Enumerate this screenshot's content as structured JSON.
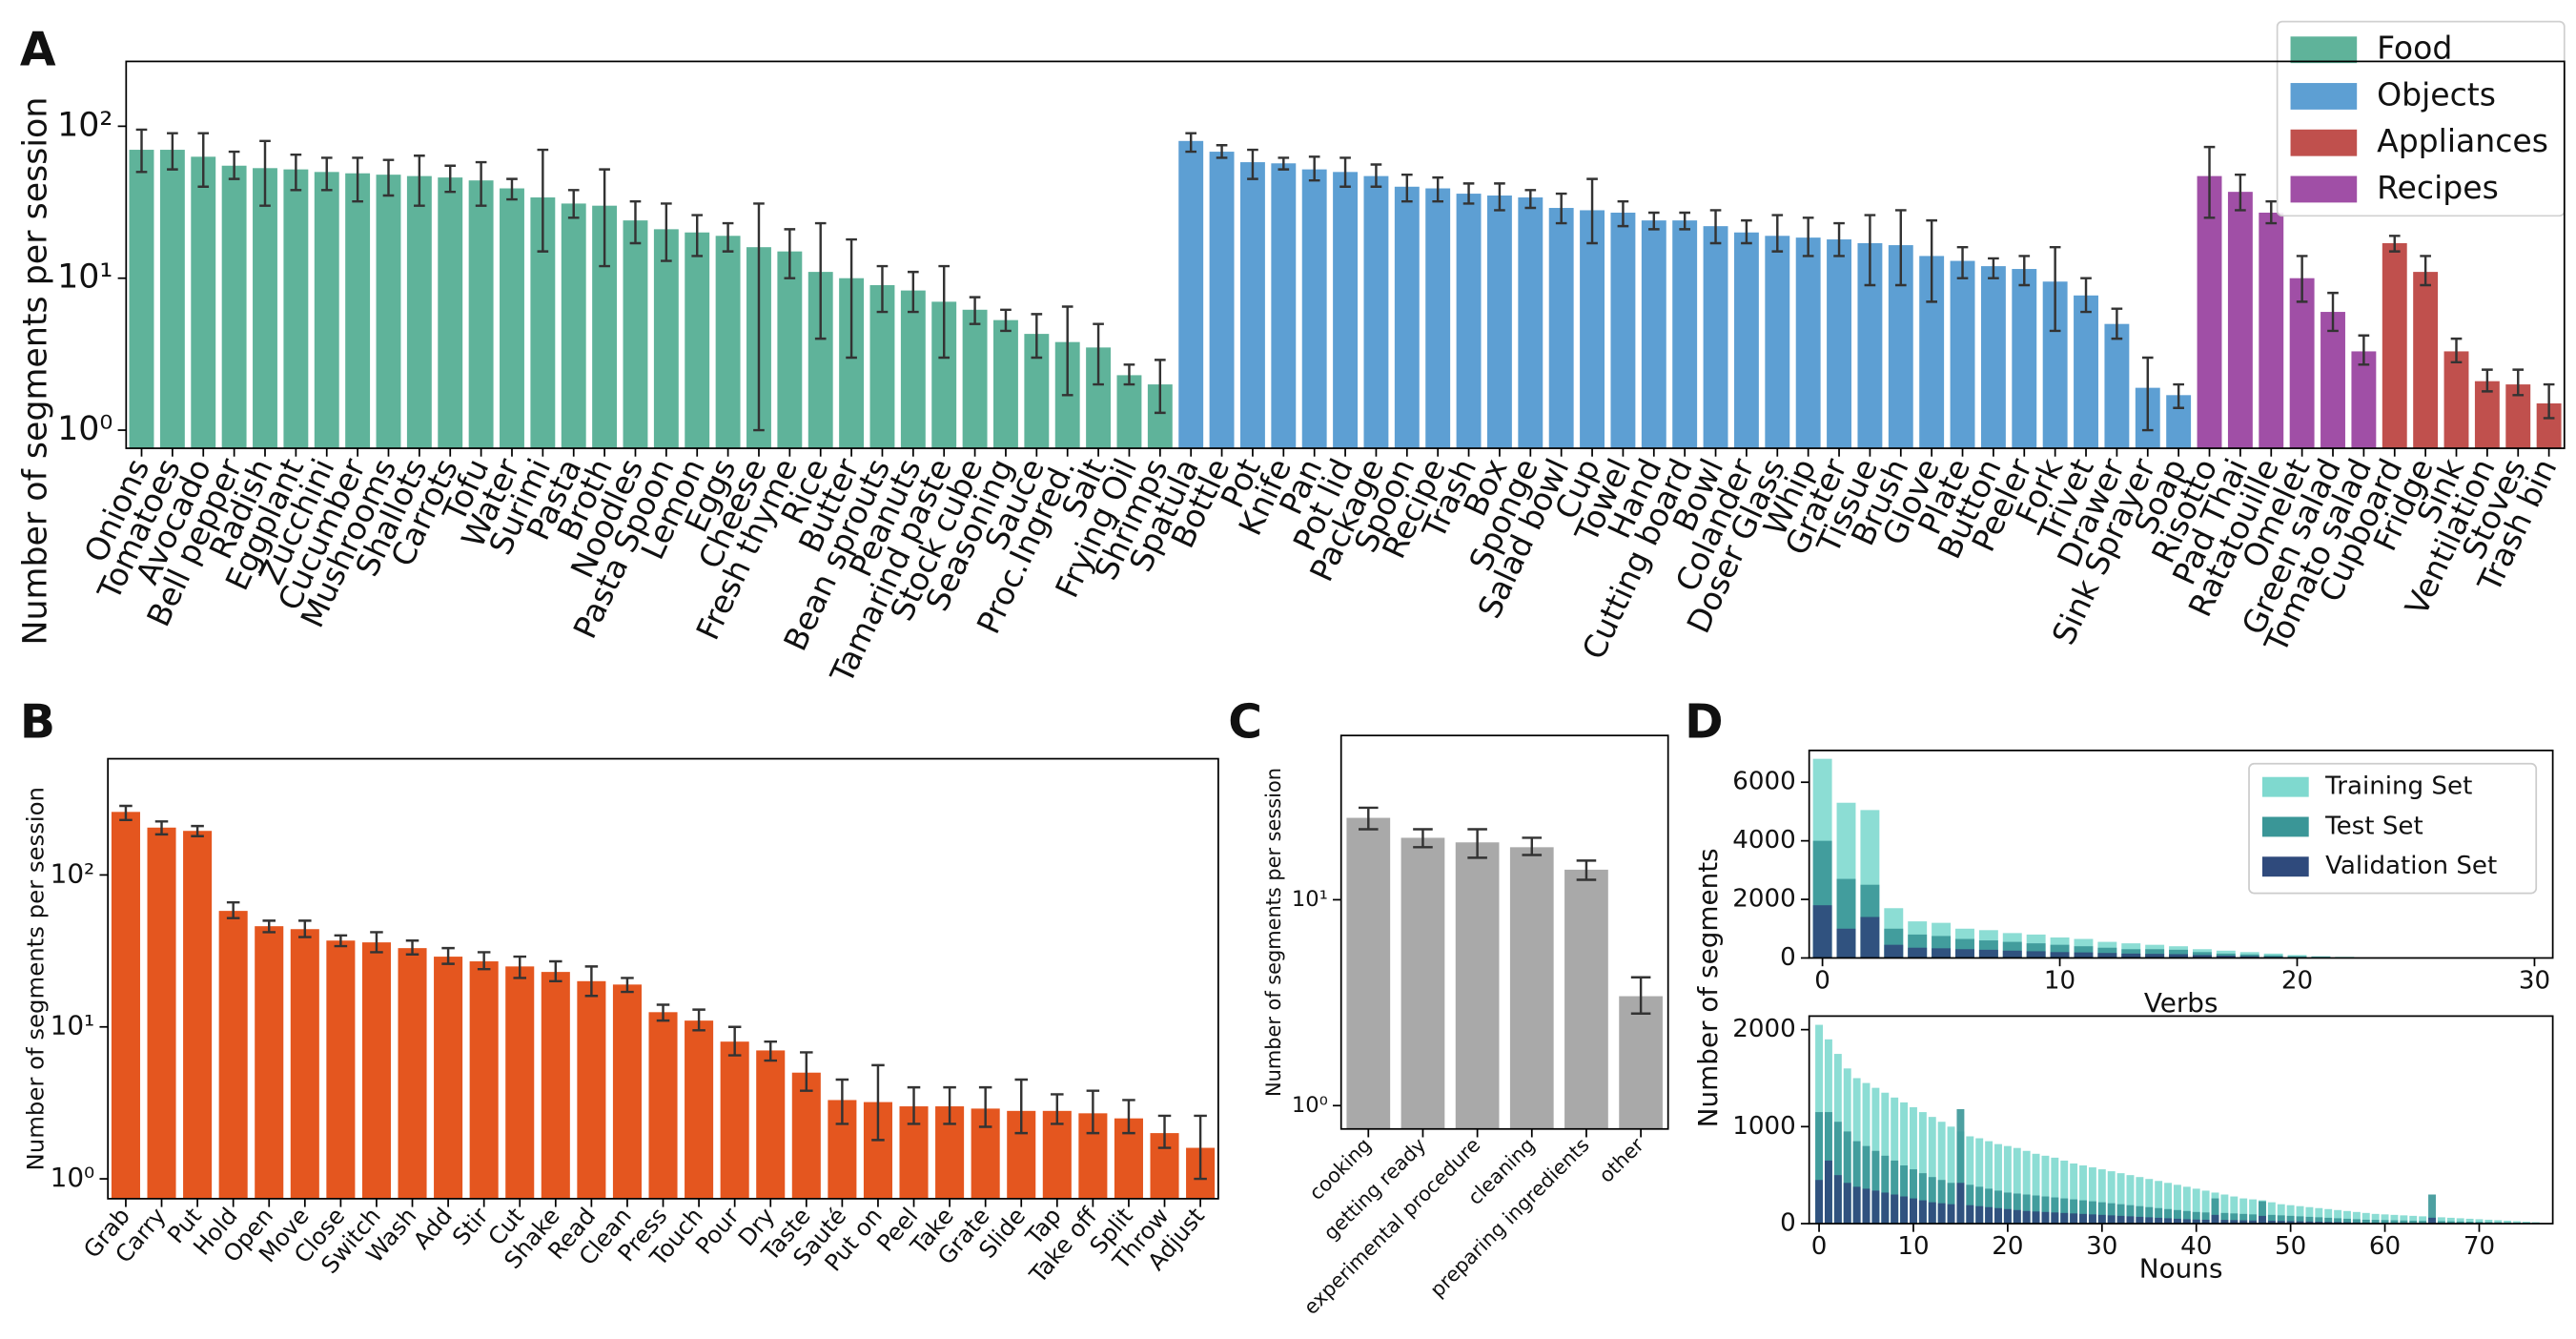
{
  "chart_data": [
    {
      "type": "bar",
      "panel": "A",
      "ylabel": "Number of segments per session",
      "yscale": "log",
      "ylim": [
        0.76,
        267
      ],
      "yticks": [
        {
          "value": 1,
          "label": "10⁰"
        },
        {
          "value": 10,
          "label": "10¹"
        },
        {
          "value": 100,
          "label": "10²"
        }
      ],
      "legend": "upper right",
      "series": [
        {
          "name": "Food",
          "color": "#5fb39a"
        },
        {
          "name": "Objects",
          "color": "#5d9fd3"
        },
        {
          "name": "Appliances",
          "color": "#c0504d"
        },
        {
          "name": "Recipes",
          "color": "#a04fa6"
        }
      ],
      "categories": [
        "Onions",
        "Tomatoes",
        "Avocado",
        "Bell pepper",
        "Radish",
        "Eggplant",
        "Zucchini",
        "Cucumber",
        "Mushrooms",
        "Shallots",
        "Carrots",
        "Tofu",
        "Water",
        "Surimi",
        "Pasta",
        "Broth",
        "Noodles",
        "Pasta Spoon",
        "Lemon",
        "Eggs",
        "Cheese",
        "Fresh thyme",
        "Rice",
        "Butter",
        "Bean sprouts",
        "Peanuts",
        "Tamarind paste",
        "Stock cube",
        "Seasoning",
        "Sauce",
        "Proc.Ingred.",
        "Salt",
        "Frying Oil",
        "Shrimps",
        "Spatula",
        "Bottle",
        "Pot",
        "Knife",
        "Pan",
        "Pot lid",
        "Package",
        "Spoon",
        "Recipe",
        "Trash",
        "Box",
        "Sponge",
        "Salad bowl",
        "Cup",
        "Towel",
        "Hand",
        "Cutting board",
        "Bowl",
        "Colander",
        "Doser Glass",
        "Whip",
        "Grater",
        "Tissue",
        "Brush",
        "Glove",
        "Plate",
        "Button",
        "Peeler",
        "Fork",
        "Trivet",
        "Drawer",
        "Sink Sprayer",
        "Soap",
        "Risotto",
        "Pad Thai",
        "Ratatouille",
        "Omelet",
        "Green salad",
        "Tomato salad",
        "Cupboard",
        "Fridge",
        "Sink",
        "Ventilation",
        "Stoves",
        "Trash bin"
      ],
      "groups": [
        "Food",
        "Food",
        "Food",
        "Food",
        "Food",
        "Food",
        "Food",
        "Food",
        "Food",
        "Food",
        "Food",
        "Food",
        "Food",
        "Food",
        "Food",
        "Food",
        "Food",
        "Food",
        "Food",
        "Food",
        "Food",
        "Food",
        "Food",
        "Food",
        "Food",
        "Food",
        "Food",
        "Food",
        "Food",
        "Food",
        "Food",
        "Food",
        "Food",
        "Food",
        "Objects",
        "Objects",
        "Objects",
        "Objects",
        "Objects",
        "Objects",
        "Objects",
        "Objects",
        "Objects",
        "Objects",
        "Objects",
        "Objects",
        "Objects",
        "Objects",
        "Objects",
        "Objects",
        "Objects",
        "Objects",
        "Objects",
        "Objects",
        "Objects",
        "Objects",
        "Objects",
        "Objects",
        "Objects",
        "Objects",
        "Objects",
        "Objects",
        "Objects",
        "Objects",
        "Objects",
        "Objects",
        "Objects",
        "Recipes",
        "Recipes",
        "Recipes",
        "Recipes",
        "Recipes",
        "Recipes",
        "Appliances",
        "Appliances",
        "Appliances",
        "Appliances",
        "Appliances",
        "Appliances"
      ],
      "values": [
        70,
        70,
        63,
        55,
        53,
        52,
        50,
        49,
        48,
        47,
        46,
        44,
        39,
        34,
        31,
        30,
        24,
        21,
        20,
        19,
        16,
        15,
        11,
        10,
        9,
        8.3,
        7,
        6.2,
        5.3,
        4.3,
        3.8,
        3.5,
        2.3,
        2.0,
        80,
        68,
        58,
        57,
        52,
        50,
        47,
        40,
        39,
        36,
        35,
        34,
        29,
        28,
        27,
        24,
        24,
        22,
        20,
        19,
        18.5,
        18,
        17,
        16.5,
        14,
        13,
        12,
        11.5,
        9.5,
        7.7,
        5,
        1.9,
        1.7,
        47,
        37,
        27,
        10,
        6,
        3.3,
        17,
        11,
        3.3,
        2.1,
        2.0,
        1.5
      ],
      "err_low": [
        50,
        52,
        40,
        45,
        30,
        38,
        38,
        32,
        35,
        30,
        37,
        30,
        33,
        15,
        25,
        12,
        17,
        13,
        14,
        15,
        1,
        10,
        4,
        3,
        6,
        6,
        3,
        5,
        4.5,
        3,
        1.7,
        2,
        2,
        1.3,
        68,
        62,
        45,
        52,
        44,
        40,
        40,
        32,
        32,
        31,
        28,
        29,
        23,
        17,
        22,
        21,
        21,
        17,
        17,
        15,
        14,
        14,
        9,
        9,
        7,
        10,
        10,
        9,
        4.5,
        6,
        4,
        1,
        1.4,
        25,
        28,
        23,
        7,
        4.5,
        2.7,
        15,
        9,
        2.8,
        1.8,
        1.7,
        1.2
      ],
      "err_high": [
        95,
        90,
        90,
        68,
        80,
        65,
        62,
        62,
        60,
        64,
        55,
        58,
        45,
        70,
        38,
        52,
        32,
        31,
        26,
        23,
        31,
        21,
        23,
        18,
        12,
        11,
        12,
        7.5,
        6.2,
        5.8,
        6.5,
        5,
        2.7,
        2.9,
        90,
        75,
        70,
        62,
        63,
        62,
        56,
        48,
        46,
        42,
        42,
        38,
        36,
        45,
        32,
        27,
        27,
        28,
        24,
        26,
        25,
        23,
        26,
        28,
        24,
        16,
        13.5,
        14,
        16,
        10,
        6.3,
        3,
        2,
        73,
        48,
        32,
        14,
        8,
        4.2,
        19,
        14,
        4,
        2.5,
        2.5,
        2
      ]
    },
    {
      "type": "bar",
      "panel": "B",
      "ylabel": "Number of segments per session",
      "yscale": "log",
      "color": "#e4561f",
      "ylim": [
        0.74,
        582
      ],
      "yticks": [
        {
          "value": 1,
          "label": "10⁰"
        },
        {
          "value": 10,
          "label": "10¹"
        },
        {
          "value": 100,
          "label": "10²"
        }
      ],
      "categories": [
        "Grab",
        "Carry",
        "Put",
        "Hold",
        "Open",
        "Move",
        "Close",
        "Switch",
        "Wash",
        "Add",
        "Stir",
        "Cut",
        "Shake",
        "Read",
        "Clean",
        "Press",
        "Touch",
        "Pour",
        "Dry",
        "Taste",
        "Sauté",
        "Put on",
        "Peel",
        "Take",
        "Grate",
        "Slide",
        "Tap",
        "Take off",
        "Split",
        "Throw",
        "Adjust"
      ],
      "values": [
        260,
        205,
        195,
        58,
        46,
        44,
        37,
        36,
        33,
        29,
        27,
        25,
        23,
        20,
        19,
        12.5,
        11,
        8,
        7,
        5,
        3.3,
        3.2,
        3.0,
        3.0,
        2.9,
        2.8,
        2.8,
        2.7,
        2.5,
        2.0,
        1.6
      ],
      "err_low": [
        230,
        185,
        180,
        52,
        42,
        39,
        34,
        31,
        30,
        26,
        24,
        21,
        20,
        16,
        17,
        11,
        9.5,
        6.5,
        6,
        3.8,
        2.3,
        1.8,
        2.3,
        2.3,
        2.2,
        2,
        2.3,
        2,
        2,
        1.6,
        1
      ],
      "err_high": [
        285,
        225,
        210,
        66,
        50,
        50,
        40,
        42,
        37,
        33,
        31,
        29,
        27,
        25,
        21,
        14,
        13,
        10,
        8,
        6.8,
        4.5,
        5.6,
        4,
        4,
        4,
        4.5,
        3.6,
        3.8,
        3.3,
        2.6,
        2.6
      ]
    },
    {
      "type": "bar",
      "panel": "C",
      "ylabel": "Number of segments per session",
      "yscale": "log",
      "color": "#a9a9a9",
      "ylim": [
        0.77,
        62.8
      ],
      "yticks": [
        {
          "value": 1,
          "label": "10⁰"
        },
        {
          "value": 10,
          "label": "10¹"
        }
      ],
      "categories": [
        "cooking",
        "getting ready",
        "experimental procedure",
        "cleaning",
        "preparing ingredients",
        "other"
      ],
      "values": [
        25,
        20,
        19,
        18,
        14,
        3.4
      ],
      "err_low": [
        22,
        18,
        16,
        16.5,
        12.5,
        2.8
      ],
      "err_high": [
        28,
        22,
        22,
        20,
        15.5,
        4.2
      ]
    },
    {
      "type": "bar",
      "panel": "D",
      "xlabel": "Verbs",
      "legend": "upper right",
      "xlim": [
        -0.56,
        30.77
      ],
      "xticks": [
        0,
        10,
        20,
        30
      ],
      "ylim": [
        0,
        7086
      ],
      "yticks": [
        0,
        2000,
        4000,
        6000
      ],
      "x": [
        0,
        1,
        2,
        3,
        4,
        5,
        6,
        7,
        8,
        9,
        10,
        11,
        12,
        13,
        14,
        15,
        16,
        17,
        18,
        19,
        20,
        21,
        22
      ],
      "series": [
        {
          "name": "Training Set",
          "color": "#7fd9cf",
          "values": [
            6800,
            5300,
            5050,
            1700,
            1250,
            1200,
            1000,
            950,
            850,
            800,
            700,
            650,
            550,
            500,
            450,
            400,
            300,
            250,
            200,
            150,
            100,
            60,
            40
          ]
        },
        {
          "name": "Test Set",
          "color": "#3a9697",
          "values": [
            4000,
            2700,
            2500,
            1000,
            800,
            750,
            650,
            600,
            550,
            500,
            450,
            400,
            350,
            300,
            300,
            280,
            200,
            150,
            120,
            90,
            60,
            40,
            20
          ]
        },
        {
          "name": "Validation Set",
          "color": "#2f4a7c",
          "values": [
            1800,
            1000,
            1400,
            450,
            350,
            330,
            300,
            280,
            250,
            230,
            200,
            190,
            170,
            150,
            140,
            130,
            100,
            80,
            60,
            40,
            30,
            20,
            10
          ]
        }
      ]
    },
    {
      "type": "bar",
      "xlabel": "Nouns",
      "ylabel": "Number of segments",
      "xlim": [
        -1.05,
        77.8
      ],
      "xticks": [
        0,
        10,
        20,
        30,
        40,
        50,
        60,
        70
      ],
      "ylim": [
        0,
        2140
      ],
      "yticks": [
        0,
        1000,
        2000
      ],
      "x": [
        0,
        1,
        2,
        3,
        4,
        5,
        6,
        7,
        8,
        9,
        10,
        11,
        12,
        13,
        14,
        15,
        16,
        17,
        18,
        19,
        20,
        21,
        22,
        23,
        24,
        25,
        26,
        27,
        28,
        29,
        30,
        31,
        32,
        33,
        34,
        35,
        36,
        37,
        38,
        39,
        40,
        41,
        42,
        43,
        44,
        45,
        46,
        47,
        48,
        49,
        50,
        51,
        52,
        53,
        54,
        55,
        56,
        57,
        58,
        59,
        60,
        61,
        62,
        63,
        64,
        65,
        66,
        67,
        68,
        69,
        70,
        71,
        72,
        73,
        74,
        75,
        76
      ],
      "series": [
        {
          "color": "#7fd9cf",
          "values": [
            2050,
            1900,
            1750,
            1600,
            1500,
            1450,
            1400,
            1350,
            1300,
            1250,
            1200,
            1150,
            1100,
            1050,
            1000,
            950,
            900,
            880,
            850,
            820,
            800,
            780,
            750,
            720,
            700,
            680,
            650,
            620,
            600,
            580,
            560,
            540,
            520,
            500,
            480,
            460,
            440,
            420,
            400,
            380,
            360,
            340,
            320,
            300,
            280,
            260,
            250,
            240,
            220,
            200,
            190,
            180,
            170,
            160,
            150,
            140,
            130,
            120,
            110,
            100,
            95,
            90,
            85,
            80,
            75,
            70,
            65,
            60,
            55,
            50,
            45,
            40,
            35,
            30,
            25,
            20,
            15
          ]
        },
        {
          "color": "#3a9697",
          "values": [
            1150,
            1150,
            1050,
            950,
            850,
            800,
            750,
            700,
            650,
            600,
            560,
            520,
            480,
            450,
            420,
            1180,
            400,
            380,
            360,
            340,
            320,
            310,
            300,
            290,
            280,
            270,
            260,
            250,
            240,
            230,
            220,
            210,
            200,
            190,
            180,
            170,
            160,
            150,
            140,
            130,
            120,
            115,
            260,
            110,
            105,
            100,
            95,
            230,
            90,
            85,
            80,
            75,
            70,
            65,
            60,
            55,
            50,
            45,
            40,
            38,
            36,
            34,
            32,
            30,
            28,
            300,
            26,
            24,
            22,
            20,
            18,
            16,
            14,
            12,
            10,
            8,
            6
          ]
        },
        {
          "color": "#2f4a7c",
          "values": [
            450,
            650,
            500,
            420,
            380,
            360,
            340,
            320,
            300,
            280,
            260,
            240,
            220,
            210,
            200,
            420,
            190,
            180,
            170,
            160,
            150,
            140,
            130,
            125,
            120,
            115,
            110,
            105,
            100,
            95,
            90,
            85,
            80,
            75,
            70,
            65,
            60,
            55,
            50,
            45,
            42,
            40,
            90,
            38,
            36,
            34,
            32,
            80,
            30,
            28,
            26,
            24,
            22,
            20,
            18,
            16,
            14,
            12,
            10,
            9,
            8,
            7,
            6,
            5,
            5,
            60,
            4,
            4,
            3,
            3,
            2,
            2,
            2,
            1,
            1,
            1,
            1
          ]
        }
      ]
    }
  ]
}
